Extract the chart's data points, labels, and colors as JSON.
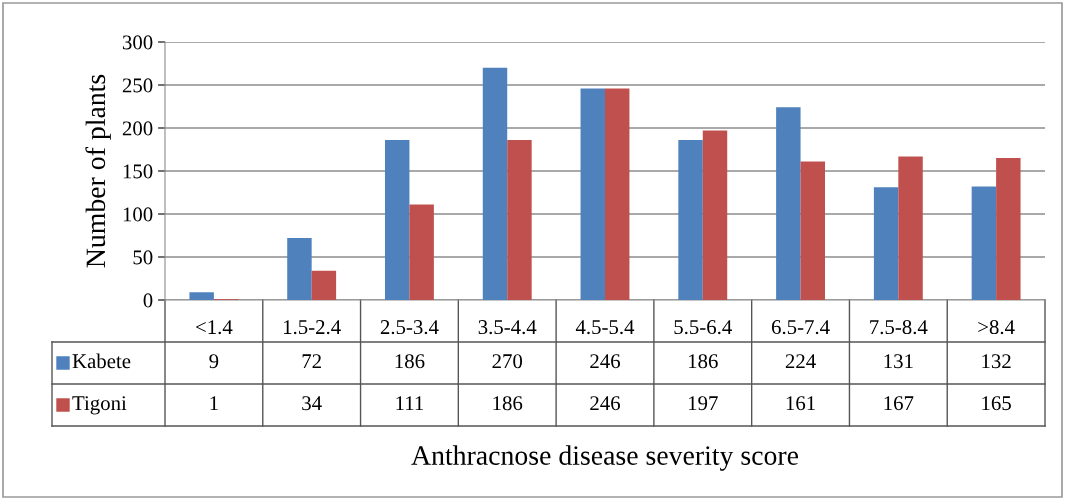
{
  "chart_data": {
    "type": "bar",
    "xlabel": "Anthracnose disease severity score",
    "ylabel": "Number of plants",
    "categories": [
      "<1.4",
      "1.5-2.4",
      "2.5-3.4",
      "3.5-4.4",
      "4.5-5.4",
      "5.5-6.4",
      "6.5-7.4",
      "7.5-8.4",
      ">8.4"
    ],
    "series": [
      {
        "name": "Kabete",
        "color": "#4f81bd",
        "values": [
          9,
          72,
          186,
          270,
          246,
          186,
          224,
          131,
          132
        ]
      },
      {
        "name": "Tigoni",
        "color": "#c0504d",
        "values": [
          1,
          34,
          111,
          186,
          246,
          197,
          161,
          167,
          165
        ]
      }
    ],
    "ylim": [
      0,
      300
    ],
    "yticks": [
      0,
      50,
      100,
      150,
      200,
      250,
      300
    ],
    "grid": "y",
    "legend": "bottom left",
    "data_labels": true
  }
}
